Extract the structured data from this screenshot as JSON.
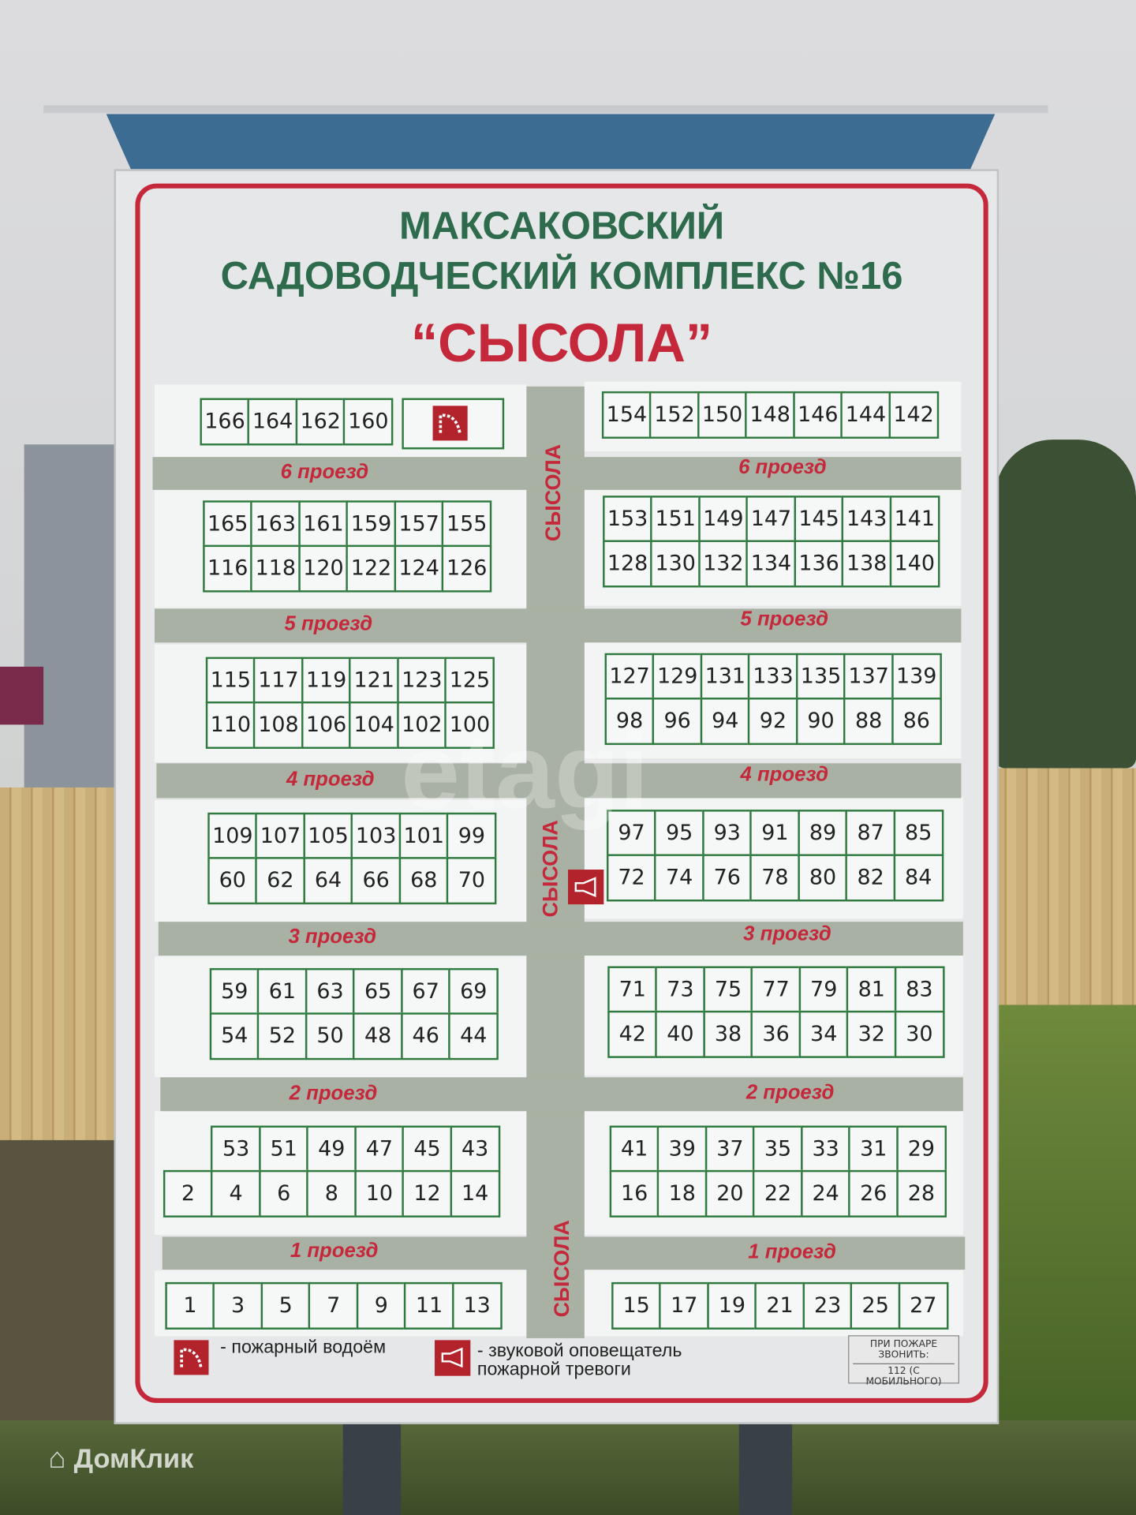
{
  "sign": {
    "title_line1": "МАКСАКОВСКИЙ",
    "title_line2": "САДОВОДЧЕСКИЙ КОМПЛЕКС №16",
    "title_line3": "“СЫСОЛА”",
    "street": "СЫСОЛА",
    "roads": [
      "6 проезд",
      "5 проезд",
      "4 проезд",
      "3 проезд",
      "2 проезд",
      "1 проезд"
    ],
    "legend": {
      "water_icon": "fire-water-reservoir-icon",
      "water_label": "- пожарный водоём",
      "alarm_icon": "fire-alarm-siren-icon",
      "alarm_label_1": "- звуковой оповещатель",
      "alarm_label_2": "пожарной тревоги"
    },
    "fire_note": {
      "line1": "ПРИ ПОЖАРЕ",
      "line2": "ЗВОНИТЬ:",
      "line3": "112 (С МОБИЛЬНОГО)"
    },
    "plots": {
      "top_left": [
        [
          166,
          164,
          162,
          160
        ]
      ],
      "top_right": [
        [
          154,
          152,
          150,
          148,
          146,
          144,
          142
        ]
      ],
      "l5": [
        [
          165,
          163,
          161,
          159,
          157,
          155
        ],
        [
          116,
          118,
          120,
          122,
          124,
          126
        ]
      ],
      "r5": [
        [
          153,
          151,
          149,
          147,
          145,
          143,
          141
        ],
        [
          128,
          130,
          132,
          134,
          136,
          138,
          140
        ]
      ],
      "l4": [
        [
          115,
          117,
          119,
          121,
          123,
          125
        ],
        [
          110,
          108,
          106,
          104,
          102,
          100
        ]
      ],
      "r4": [
        [
          127,
          129,
          131,
          133,
          135,
          137,
          139
        ],
        [
          98,
          96,
          94,
          92,
          90,
          88,
          86
        ]
      ],
      "l3": [
        [
          109,
          107,
          105,
          103,
          101,
          99
        ],
        [
          60,
          62,
          64,
          66,
          68,
          70
        ]
      ],
      "r3": [
        [
          97,
          95,
          93,
          91,
          89,
          87,
          85
        ],
        [
          72,
          74,
          76,
          78,
          80,
          82,
          84
        ]
      ],
      "l2": [
        [
          59,
          61,
          63,
          65,
          67,
          69
        ],
        [
          54,
          52,
          50,
          48,
          46,
          44
        ]
      ],
      "r2": [
        [
          71,
          73,
          75,
          77,
          79,
          81,
          83
        ],
        [
          42,
          40,
          38,
          36,
          34,
          32,
          30
        ]
      ],
      "l1": [
        [
          null,
          53,
          51,
          49,
          47,
          45,
          43
        ],
        [
          2,
          4,
          6,
          8,
          10,
          12,
          14
        ]
      ],
      "r1": [
        [
          41,
          39,
          37,
          35,
          33,
          31,
          29
        ],
        [
          16,
          18,
          20,
          22,
          24,
          26,
          28
        ]
      ],
      "bottom_left": [
        [
          1,
          3,
          5,
          7,
          9,
          11,
          13
        ]
      ],
      "bottom_right": [
        [
          15,
          17,
          19,
          21,
          23,
          25,
          27
        ]
      ]
    }
  },
  "colors": {
    "title_green": "#2e6b4c",
    "accent_red": "#c5283a",
    "grid_green": "#2f7a3e",
    "road_grey": "#a8b1a3"
  },
  "watermarks": {
    "brand": "ДомКлик",
    "center": "etagi"
  }
}
